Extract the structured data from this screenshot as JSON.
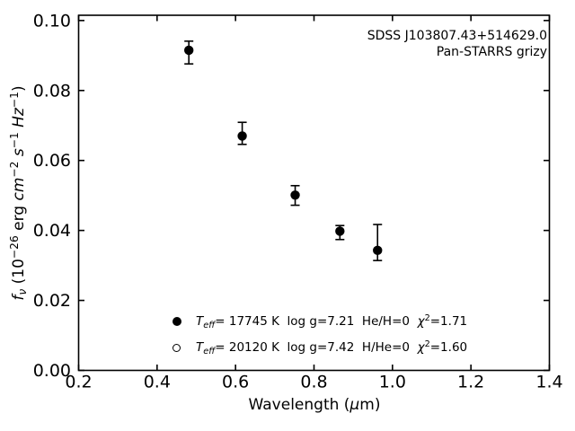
{
  "chart_data": {
    "type": "scatter",
    "title": "",
    "xlabel": "Wavelength (μm)",
    "ylabel": "f_ν (10⁻²⁶ erg cm⁻² s⁻¹ Hz⁻¹)",
    "xlim": [
      0.2,
      1.4
    ],
    "ylim": [
      0,
      0.1015
    ],
    "grid": false,
    "legend_position": "lower center",
    "xticks": [
      0.2,
      0.4,
      0.6,
      0.8,
      1.0,
      1.2,
      1.4
    ],
    "xtick_labels": [
      "0.2",
      "0.4",
      "0.6",
      "0.8",
      "1.0",
      "1.2",
      "1.4"
    ],
    "yticks": [
      0.0,
      0.02,
      0.04,
      0.06,
      0.08,
      0.1
    ],
    "ytick_labels": [
      "0.00",
      "0.02",
      "0.04",
      "0.06",
      "0.08",
      "0.10"
    ],
    "series": [
      {
        "name": "Teff= 17745 K  log g=7.21  He/H=0  chi2=1.71",
        "marker": "filled-circle",
        "points": [
          {
            "x": 0.481,
            "y": 0.0915,
            "err_up": 0.0026,
            "err_down": 0.0039
          },
          {
            "x": 0.617,
            "y": 0.067,
            "err_up": 0.0039,
            "err_down": 0.0024
          },
          {
            "x": 0.752,
            "y": 0.0501,
            "err_up": 0.0027,
            "err_down": 0.0029
          },
          {
            "x": 0.866,
            "y": 0.0398,
            "err_up": 0.0016,
            "err_down": 0.0024
          },
          {
            "x": 0.962,
            "y": 0.0343,
            "err_up": 0.0074,
            "err_down": 0.0029
          }
        ]
      },
      {
        "name": "Teff= 20120 K  log g=7.42  H/He=0  chi2=1.60",
        "marker": "open-circle",
        "points": []
      }
    ]
  },
  "annotation": {
    "line1": "SDSS J103807.43+514629.0",
    "line2": "Pan-STARRS grizy"
  },
  "xlabel_parts": {
    "pre": "Wavelength (",
    "mu": "μ",
    "post": "m)"
  },
  "ylabel_parts": {
    "f": "f",
    "nu": "ν",
    "open": " (10",
    "pow": "−26",
    "erg": " erg ",
    "cm": "cm",
    "cm_pow": "−2",
    "sp1": " ",
    "s": "s",
    "s_pow": "−1",
    "sp2": " ",
    "hz": "Hz",
    "hz_pow": "−1",
    "close": ")"
  },
  "legend": {
    "rows": [
      {
        "marker": "filled-circle",
        "t": "T",
        "t_sub": "eff",
        "body": "= 17745 K  log g=7.21  He/H=0  ",
        "chi": "χ",
        "chi_sup": "2",
        "chi_val": "=1.71"
      },
      {
        "marker": "open-circle",
        "t": "T",
        "t_sub": "eff",
        "body": "= 20120 K  log g=7.42  H/He=0  ",
        "chi": "χ",
        "chi_sup": "2",
        "chi_val": "=1.60"
      }
    ]
  }
}
